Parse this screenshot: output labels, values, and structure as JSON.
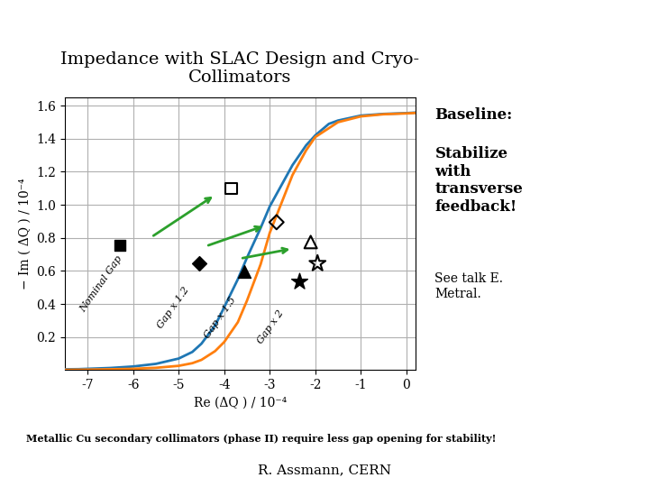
{
  "chart_data": {
    "type": "line",
    "title": "Impedance with SLAC Design and Cryo-\nCollimators",
    "xlabel": "Re (ΔQ ) / 10⁻⁴",
    "ylabel": "− Im ( ΔQ ) / 10⁻⁴",
    "xlim": [
      -7.5,
      0.2
    ],
    "ylim": [
      0,
      1.65
    ],
    "xticks": [
      -7,
      -6,
      -5,
      -4,
      -3,
      -2,
      -1,
      0
    ],
    "yticks": [
      0.2,
      0.4,
      0.6,
      0.8,
      1.0,
      1.2,
      1.4,
      1.6
    ],
    "grid": true,
    "series": [
      {
        "x": [
          -7.5,
          -7.2,
          -7.0,
          -6.5,
          -6.0,
          -5.5,
          -5.0,
          -4.7,
          -4.5,
          -4.2,
          -4.0,
          -3.7,
          -3.5,
          -3.2,
          -3.0,
          -2.7,
          -2.5,
          -2.2,
          -2.0,
          -1.7,
          -1.5,
          -1.0,
          -0.5,
          0.0,
          0.2
        ],
        "values": [
          0.005,
          0.006,
          0.008,
          0.013,
          0.022,
          0.038,
          0.07,
          0.11,
          0.16,
          0.27,
          0.38,
          0.55,
          0.68,
          0.86,
          0.99,
          1.14,
          1.24,
          1.36,
          1.42,
          1.49,
          1.51,
          1.54,
          1.55,
          1.555,
          1.558
        ]
      },
      {
        "x": [
          -7.5,
          -7.0,
          -6.5,
          -6.0,
          -5.5,
          -5.0,
          -4.7,
          -4.5,
          -4.2,
          -4.0,
          -3.7,
          -3.5,
          -3.2,
          -3.0,
          -2.7,
          -2.5,
          -2.2,
          -2.0,
          -1.5,
          -1.0,
          -0.5,
          0.0,
          0.2
        ],
        "values": [
          0.002,
          0.003,
          0.005,
          0.008,
          0.014,
          0.026,
          0.042,
          0.062,
          0.115,
          0.17,
          0.29,
          0.42,
          0.64,
          0.83,
          1.04,
          1.18,
          1.33,
          1.41,
          1.5,
          1.535,
          1.548,
          1.553,
          1.556
        ]
      },
      {
        "type": "scatter",
        "marker": "square",
        "color": "black",
        "x": [
          -6.3
        ],
        "values": [
          0.755
        ]
      },
      {
        "type": "scatter",
        "marker": "diamond",
        "color": "black",
        "x": [
          -4.55
        ],
        "values": [
          0.645
        ]
      },
      {
        "type": "scatter",
        "marker": "triangle",
        "color": "black",
        "x": [
          -3.55
        ],
        "values": [
          0.595
        ]
      },
      {
        "type": "scatter",
        "marker": "star",
        "color": "black",
        "x": [
          -2.35
        ],
        "values": [
          0.535
        ]
      },
      {
        "type": "scatter",
        "marker": "open_square",
        "color": "black",
        "x": [
          -3.85
        ],
        "values": [
          1.1
        ]
      },
      {
        "type": "scatter",
        "marker": "open_diamond",
        "color": "black",
        "x": [
          -2.85
        ],
        "values": [
          0.895
        ]
      },
      {
        "type": "scatter",
        "marker": "open_triangle",
        "color": "black",
        "x": [
          -2.1
        ],
        "values": [
          0.775
        ]
      },
      {
        "type": "scatter",
        "marker": "open_star",
        "color": "black",
        "x": [
          -1.95
        ],
        "values": [
          0.645
        ]
      }
    ],
    "arrows": [
      {
        "x1": -5.6,
        "y1": 0.805,
        "x2": -4.2,
        "y2": 1.06
      },
      {
        "x1": -4.4,
        "y1": 0.75,
        "x2": -3.1,
        "y2": 0.875
      },
      {
        "x1": -3.65,
        "y1": 0.675,
        "x2": -2.5,
        "y2": 0.735
      }
    ],
    "annotations": [
      {
        "x": -7.05,
        "y": 0.34,
        "text": "Nominal Gap"
      },
      {
        "x": -5.35,
        "y": 0.24,
        "text": "Gap x 1.2"
      },
      {
        "x": -4.32,
        "y": 0.18,
        "text": "Gap x 1.5"
      },
      {
        "x": -3.15,
        "y": 0.15,
        "text": "Gap x 2"
      }
    ],
    "notes": [
      "Baseline:",
      "Stabilize\nwith\ntransverse\nfeedback!",
      "See talk E.\nMetral."
    ],
    "caption": "Metallic Cu secondary collimators (phase II) require less gap opening for stability!",
    "footer": "R. Assmann, CERN"
  }
}
